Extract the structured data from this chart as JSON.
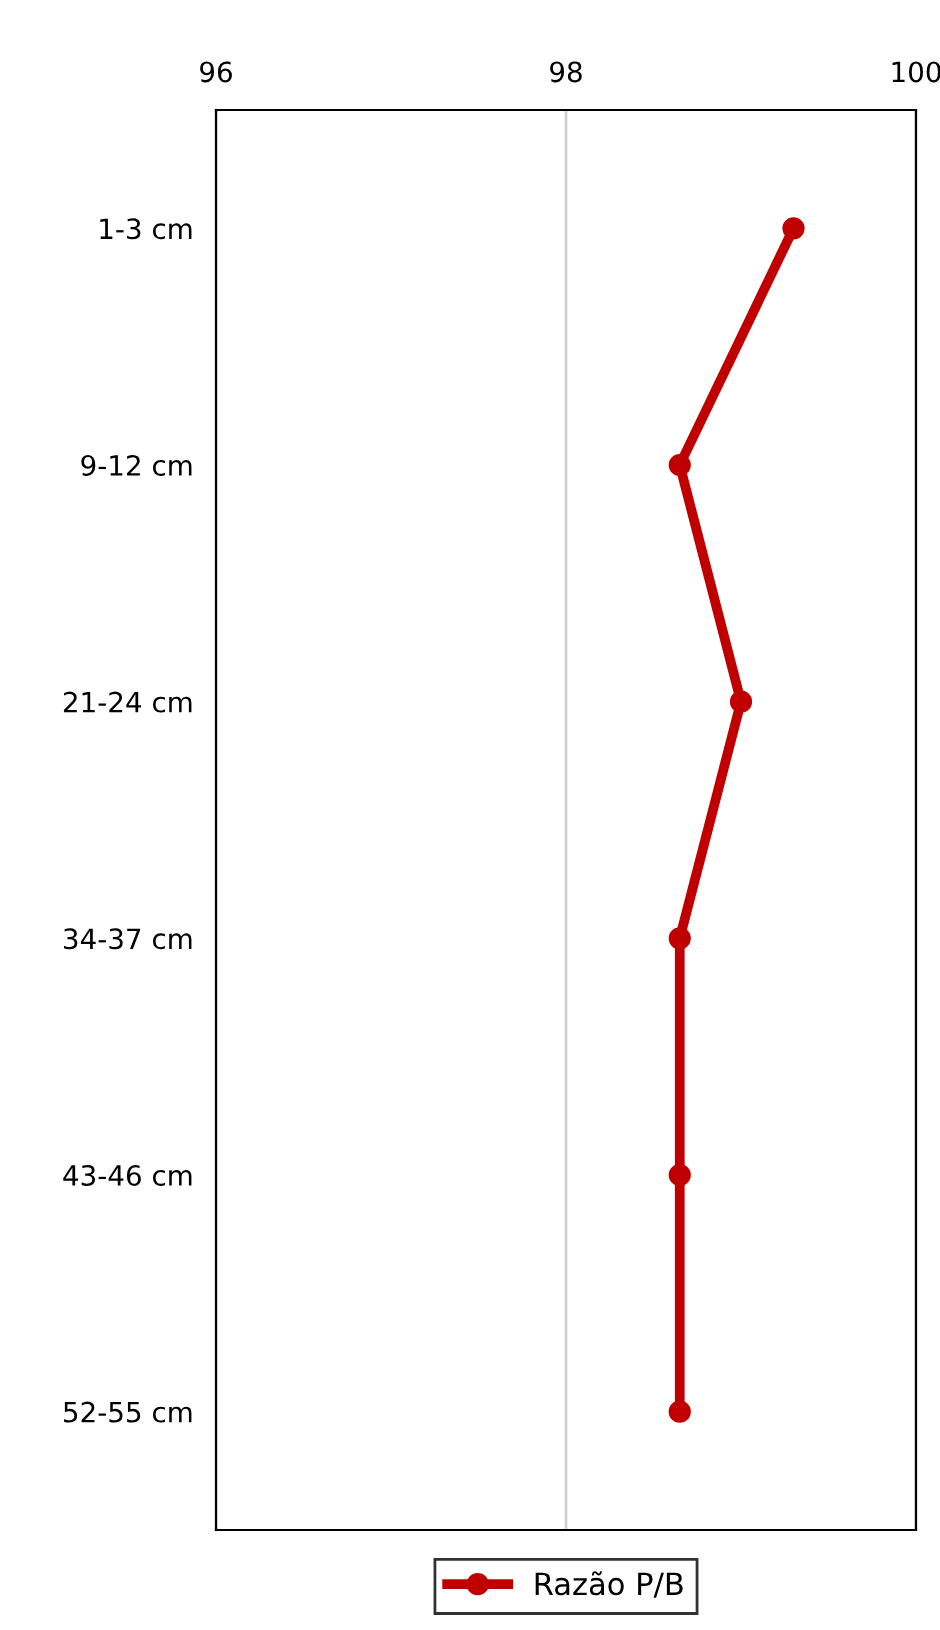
{
  "chart_data": {
    "type": "line",
    "orientation": "horizontal",
    "categories": [
      "1-3 cm",
      "9-12 cm",
      "21-24 cm",
      "34-37 cm",
      "43-46 cm",
      "52-55 cm"
    ],
    "series": [
      {
        "name": "Razão P/B",
        "color": "#c00000",
        "axis": "x2",
        "values": [
          99.3,
          98.65,
          99.0,
          98.65,
          98.65,
          98.65
        ]
      }
    ],
    "x2lim": [
      96,
      100
    ],
    "x2ticks": [
      96,
      98,
      100
    ],
    "grid": "x",
    "legend": "bottom",
    "marker": "circle",
    "line_style": "solid"
  }
}
